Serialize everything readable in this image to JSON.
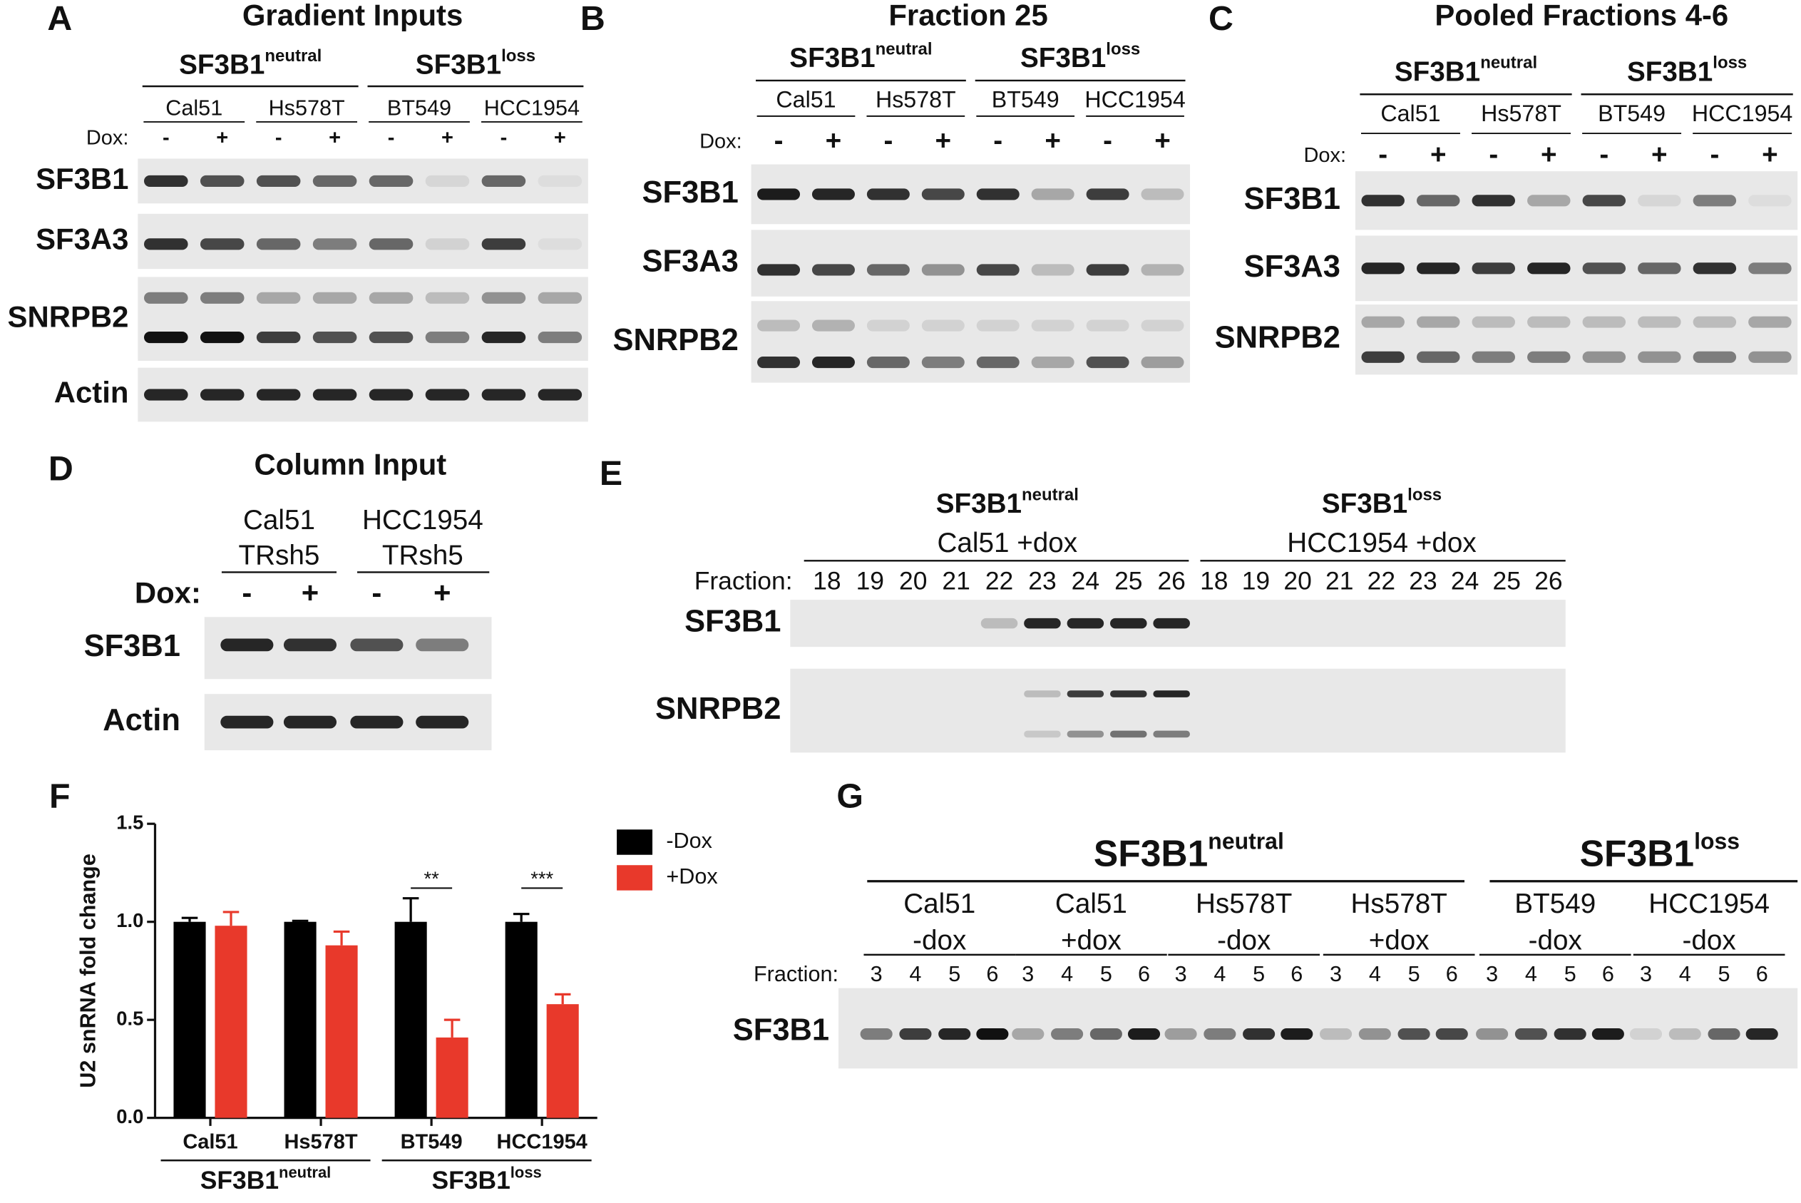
{
  "panels": {
    "A": {
      "letter": "A",
      "title": "Gradient Inputs",
      "groups": [
        {
          "name": "SF3B1",
          "superscript": "neutral",
          "cell_lines": [
            "Cal51",
            "Hs578T"
          ]
        },
        {
          "name": "SF3B1",
          "superscript": "loss",
          "cell_lines": [
            "BT549",
            "HCC1954"
          ]
        }
      ],
      "dox_label": "Dox:",
      "dox": [
        "-",
        "+",
        "-",
        "+",
        "-",
        "+",
        "-",
        "+"
      ],
      "rows": [
        "SF3B1",
        "SF3A3",
        "SNRPB2",
        "Actin"
      ]
    },
    "B": {
      "letter": "B",
      "title": "Fraction 25",
      "groups": [
        {
          "name": "SF3B1",
          "superscript": "neutral",
          "cell_lines": [
            "Cal51",
            "Hs578T"
          ]
        },
        {
          "name": "SF3B1",
          "superscript": "loss",
          "cell_lines": [
            "BT549",
            "HCC1954"
          ]
        }
      ],
      "dox_label": "Dox:",
      "dox": [
        "-",
        "+",
        "-",
        "+",
        "-",
        "+",
        "-",
        "+"
      ],
      "rows": [
        "SF3B1",
        "SF3A3",
        "SNRPB2"
      ]
    },
    "C": {
      "letter": "C",
      "title": "Pooled Fractions 4-6",
      "groups": [
        {
          "name": "SF3B1",
          "superscript": "neutral",
          "cell_lines": [
            "Cal51",
            "Hs578T"
          ]
        },
        {
          "name": "SF3B1",
          "superscript": "loss",
          "cell_lines": [
            "BT549",
            "HCC1954"
          ]
        }
      ],
      "dox_label": "Dox:",
      "dox": [
        "-",
        "+",
        "-",
        "+",
        "-",
        "+",
        "-",
        "+"
      ],
      "rows": [
        "SF3B1",
        "SF3A3",
        "SNRPB2"
      ]
    },
    "D": {
      "letter": "D",
      "title": "Column Input",
      "cell_lines": [
        [
          "Cal51",
          "TRsh5"
        ],
        [
          "HCC1954",
          "TRsh5"
        ]
      ],
      "dox_label": "Dox:",
      "dox": [
        "-",
        "+",
        "-",
        "+"
      ],
      "rows": [
        "SF3B1",
        "Actin"
      ]
    },
    "E": {
      "letter": "E",
      "groups": [
        {
          "name": "SF3B1",
          "superscript": "neutral",
          "condition": "Cal51 +dox",
          "fractions": [
            18,
            19,
            20,
            21,
            22,
            23,
            24,
            25,
            26
          ]
        },
        {
          "name": "SF3B1",
          "superscript": "loss",
          "condition": "HCC1954 +dox",
          "fractions": [
            18,
            19,
            20,
            21,
            22,
            23,
            24,
            25,
            26
          ]
        }
      ],
      "fraction_label": "Fraction:",
      "rows": [
        "SF3B1",
        "SNRPB2"
      ]
    },
    "G": {
      "letter": "G",
      "groups": [
        {
          "name": "SF3B1",
          "superscript": "neutral",
          "samples": [
            {
              "cell_line": "Cal51",
              "condition": "-dox",
              "fractions": [
                3,
                4,
                5,
                6
              ]
            },
            {
              "cell_line": "Cal51",
              "condition": "+dox",
              "fractions": [
                3,
                4,
                5,
                6
              ]
            },
            {
              "cell_line": "Hs578T",
              "condition": "-dox",
              "fractions": [
                3,
                4,
                5,
                6
              ]
            },
            {
              "cell_line": "Hs578T",
              "condition": "+dox",
              "fractions": [
                3,
                4,
                5,
                6
              ]
            }
          ]
        },
        {
          "name": "SF3B1",
          "superscript": "loss",
          "samples": [
            {
              "cell_line": "BT549",
              "condition": "-dox",
              "fractions": [
                3,
                4,
                5,
                6
              ]
            },
            {
              "cell_line": "HCC1954",
              "condition": "-dox",
              "fractions": [
                3,
                4,
                5,
                6
              ]
            }
          ]
        }
      ],
      "fraction_label": "Fraction:",
      "rows": [
        "SF3B1"
      ]
    }
  },
  "chart_data": {
    "type": "bar",
    "panel_letter": "F",
    "ylabel": "U2 snRNA fold change",
    "categories": [
      "Cal51",
      "Hs578T",
      "BT549",
      "HCC1954"
    ],
    "groups": [
      {
        "name": "SF3B1",
        "superscript": "neutral"
      },
      {
        "name": "SF3B1",
        "superscript": "loss"
      }
    ],
    "series": [
      {
        "name": "-Dox",
        "color": "#000000",
        "values": [
          1.0,
          1.0,
          1.0,
          1.0
        ],
        "errors": [
          0.02,
          0.005,
          0.12,
          0.04
        ]
      },
      {
        "name": "+Dox",
        "color": "#e8392b",
        "values": [
          0.98,
          0.88,
          0.41,
          0.58
        ],
        "errors": [
          0.07,
          0.07,
          0.09,
          0.05
        ]
      }
    ],
    "significance": [
      null,
      null,
      "**",
      "***"
    ],
    "ylim": [
      0,
      1.5
    ],
    "yticks": [
      {
        "value": 0,
        "label": "0.0"
      },
      0.5,
      {
        "value": 1,
        "label": "1.0"
      },
      1.5
    ]
  }
}
